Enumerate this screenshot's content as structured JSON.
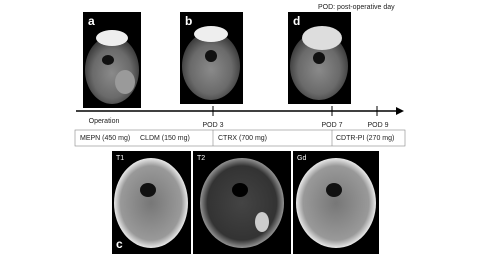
{
  "note": "POD: post-operative day",
  "ct_panels": [
    {
      "label": "a"
    },
    {
      "label": "b"
    },
    {
      "label": "d"
    }
  ],
  "timeline": {
    "events": [
      "Operation",
      "POD 3",
      "POD 7",
      "POD 9"
    ],
    "drugs": [
      "MEPN (450 mg)",
      "CLDM (150 mg)",
      "CTRX (700 mg)",
      "CDTR-PI (270 mg)"
    ]
  },
  "mri": {
    "panel_label": "c",
    "sequences": [
      "T1",
      "T2",
      "Gd"
    ]
  }
}
